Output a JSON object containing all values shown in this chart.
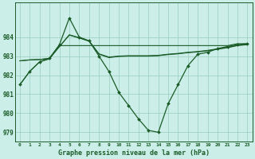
{
  "title": "Graphe pression niveau de la mer (hPa)",
  "background_color": "#cceee8",
  "grid_color": "#99ccbb",
  "line_color": "#1a5c28",
  "x_labels": [
    "0",
    "1",
    "2",
    "3",
    "4",
    "5",
    "6",
    "7",
    "8",
    "9",
    "10",
    "11",
    "12",
    "13",
    "14",
    "15",
    "16",
    "17",
    "18",
    "19",
    "20",
    "21",
    "22",
    "23"
  ],
  "ylim": [
    978.5,
    985.8
  ],
  "yticks": [
    979,
    980,
    981,
    982,
    983,
    984
  ],
  "line_main": [
    981.5,
    982.2,
    982.7,
    982.9,
    983.6,
    985.0,
    984.0,
    983.8,
    983.0,
    982.2,
    981.1,
    980.4,
    979.7,
    979.1,
    979.0,
    980.5,
    981.5,
    982.5,
    983.1,
    983.2,
    983.4,
    983.5,
    983.6,
    983.65
  ],
  "line_trend1": [
    981.5,
    982.2,
    982.7,
    982.85,
    983.55,
    983.55,
    983.55,
    983.55,
    983.55,
    983.55,
    983.55,
    983.55,
    983.55,
    983.55,
    983.55,
    983.55,
    983.55,
    983.55,
    983.55,
    983.55,
    983.55,
    983.55,
    983.65,
    983.65
  ],
  "line_smooth1": [
    982.75,
    982.8,
    982.82,
    982.88,
    983.5,
    984.1,
    983.95,
    983.78,
    983.1,
    982.92,
    982.98,
    983.0,
    983.0,
    983.0,
    983.02,
    983.08,
    983.12,
    983.18,
    983.22,
    983.28,
    983.36,
    983.44,
    983.55,
    983.6
  ],
  "line_smooth2": [
    982.75,
    982.8,
    982.82,
    982.88,
    983.5,
    984.12,
    983.97,
    983.8,
    983.12,
    982.95,
    983.0,
    983.02,
    983.02,
    983.02,
    983.04,
    983.1,
    983.14,
    983.2,
    983.24,
    983.3,
    983.38,
    983.46,
    983.57,
    983.62
  ]
}
